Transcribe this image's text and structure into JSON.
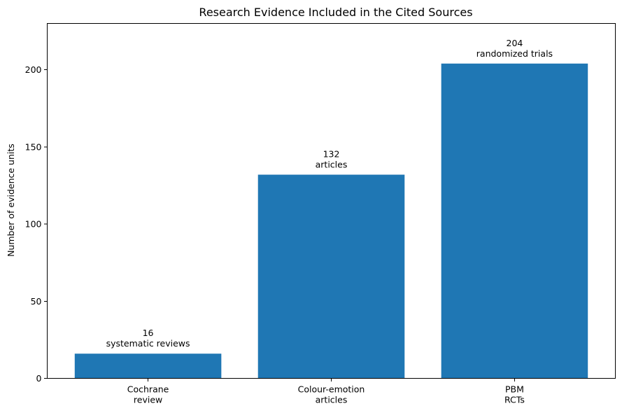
{
  "chart_data": {
    "type": "bar",
    "title": "Research Evidence Included in the Cited Sources",
    "xlabel": "",
    "ylabel": "Number of evidence units",
    "ylim": [
      0,
      230
    ],
    "yticks": [
      0,
      50,
      100,
      150,
      200
    ],
    "grid": false,
    "bar_color": "#1f77b4",
    "categories": [
      [
        "Cochrane",
        "review"
      ],
      [
        "Colour-emotion",
        "articles"
      ],
      [
        "PBM",
        "RCTs"
      ]
    ],
    "values": [
      16,
      132,
      204
    ],
    "data_labels": [
      [
        "16",
        "systematic reviews"
      ],
      [
        "132",
        "articles"
      ],
      [
        "204",
        "randomized trials"
      ]
    ]
  }
}
